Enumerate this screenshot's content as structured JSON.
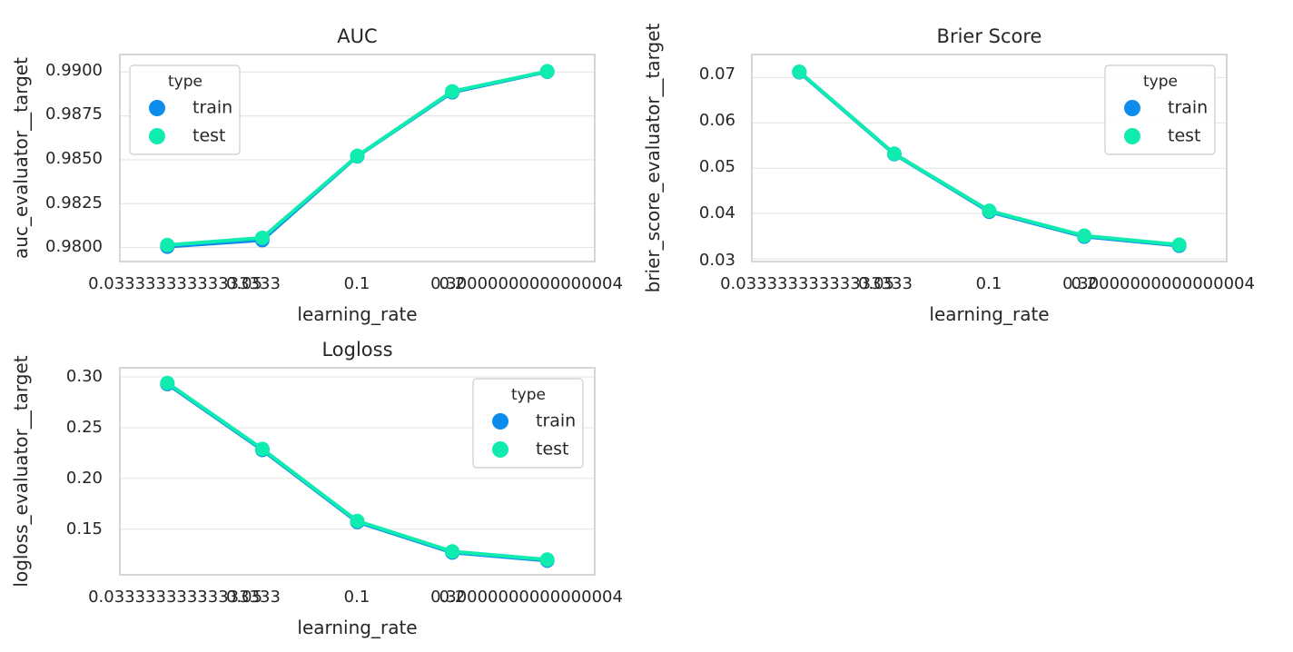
{
  "legend": {
    "title": "type",
    "entries": [
      {
        "label": "train",
        "color": "#0e8cec"
      },
      {
        "label": "test",
        "color": "#10ecb0"
      }
    ]
  },
  "chart_data": [
    {
      "type": "line",
      "title": "AUC",
      "xlabel": "learning_rate",
      "ylabel": "auc_evaluator__target",
      "x_tick_labels": [
        "0.03333333333333333",
        "0.05",
        "0.1",
        "0.2",
        "0.30000000000000004"
      ],
      "y_ticks": [
        "0.9800",
        "0.9825",
        "0.9850",
        "0.9875",
        "0.9900"
      ],
      "ylim": [
        0.9792,
        0.991
      ],
      "grid": true,
      "legend_position": "top-left",
      "series": [
        {
          "name": "train",
          "values": [
            0.98005,
            0.98042,
            0.9852,
            0.98885,
            0.99002
          ]
        },
        {
          "name": "test",
          "values": [
            0.98014,
            0.98055,
            0.98522,
            0.9889,
            0.99004
          ]
        }
      ]
    },
    {
      "type": "line",
      "title": "Brier Score",
      "xlabel": "learning_rate",
      "ylabel": "brier_score_evaluator__target",
      "x_tick_labels": [
        "0.03333333333333333",
        "0.05",
        "0.1",
        "0.2",
        "0.30000000000000004"
      ],
      "y_ticks": [
        "0.03",
        "0.04",
        "0.05",
        "0.06",
        "0.07"
      ],
      "ylim": [
        0.0294,
        0.0751
      ],
      "grid": true,
      "legend_position": "top-right",
      "series": [
        {
          "name": "train",
          "values": [
            0.0712,
            0.0531,
            0.0404,
            0.0349,
            0.0329
          ]
        },
        {
          "name": "test",
          "values": [
            0.0713,
            0.0532,
            0.0406,
            0.0351,
            0.0331
          ]
        }
      ]
    },
    {
      "type": "line",
      "title": "Logloss",
      "xlabel": "learning_rate",
      "ylabel": "logloss_evaluator__target",
      "x_tick_labels": [
        "0.03333333333333333",
        "0.05",
        "0.1",
        "0.2",
        "0.30000000000000004"
      ],
      "y_ticks": [
        "0.15",
        "0.20",
        "0.25",
        "0.30"
      ],
      "ylim": [
        0.105,
        0.309
      ],
      "grid": true,
      "legend_position": "top-right",
      "series": [
        {
          "name": "train",
          "values": [
            0.293,
            0.228,
            0.157,
            0.127,
            0.119
          ]
        },
        {
          "name": "test",
          "values": [
            0.294,
            0.229,
            0.158,
            0.128,
            0.12
          ]
        }
      ]
    }
  ]
}
